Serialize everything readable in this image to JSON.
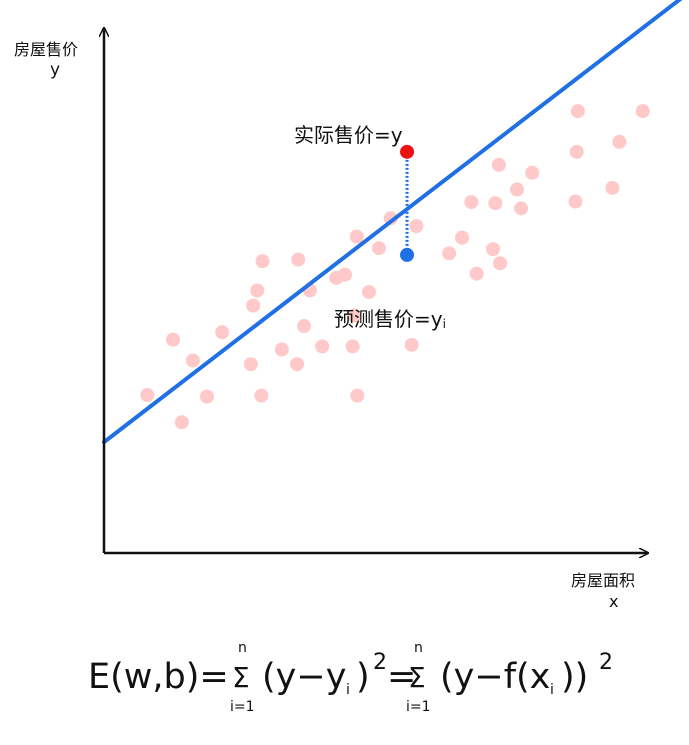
{
  "y_axis": {
    "title": "房屋售价",
    "var": "y"
  },
  "x_axis": {
    "title": "房屋面积",
    "var": "x"
  },
  "annotations": {
    "actual": "实际售价=y",
    "predicted": "预测售价=y",
    "predicted_sub": "i"
  },
  "formula": {
    "lhs": "E(w,b)=",
    "sum_top": "n",
    "sum_symbol": "Σ",
    "sum_bottom": "i=1",
    "term1_open": "(y−y",
    "sub_i": "i",
    "term1_close": ")",
    "squared": "2",
    "equals": "=",
    "term2_open": "(y−f(x",
    "term2_close": "))"
  },
  "colors": {
    "scatter": "#ffc9c9",
    "fit_line": "#1f6fe5",
    "actual_point": "#ee1111",
    "predicted_point": "#1f6fe5",
    "residual": "#1f6fe5",
    "axis": "#111111"
  },
  "chart_data": {
    "type": "scatter",
    "title": "",
    "xlabel": "房屋面积 x",
    "ylabel": "房屋售价 y",
    "axis_ticks": false,
    "grid": false,
    "xlim": [
      0,
      100
    ],
    "ylim": [
      0,
      100
    ],
    "fit_line": {
      "intercept": 21.2,
      "slope": 0.86
    },
    "points": [
      [
        7.4,
        30.2
      ],
      [
        11.8,
        40.8
      ],
      [
        13.3,
        25.0
      ],
      [
        15.2,
        36.8
      ],
      [
        17.6,
        29.9
      ],
      [
        20.2,
        42.2
      ],
      [
        25.1,
        36.1
      ],
      [
        25.5,
        47.3
      ],
      [
        26.2,
        50.2
      ],
      [
        26.9,
        30.1
      ],
      [
        27.1,
        55.8
      ],
      [
        30.4,
        38.9
      ],
      [
        33.0,
        36.1
      ],
      [
        33.2,
        56.1
      ],
      [
        34.2,
        43.4
      ],
      [
        35.2,
        50.2
      ],
      [
        37.3,
        39.5
      ],
      [
        39.7,
        52.6
      ],
      [
        41.2,
        53.2
      ],
      [
        42.5,
        39.5
      ],
      [
        42.8,
        45.4
      ],
      [
        43.2,
        60.5
      ],
      [
        43.3,
        30.1
      ],
      [
        45.3,
        49.9
      ],
      [
        47.0,
        58.3
      ],
      [
        49.0,
        64.0
      ],
      [
        52.6,
        39.8
      ],
      [
        53.4,
        62.5
      ],
      [
        59.0,
        57.3
      ],
      [
        61.2,
        60.3
      ],
      [
        62.8,
        67.1
      ],
      [
        63.7,
        53.4
      ],
      [
        66.5,
        58.1
      ],
      [
        66.9,
        66.9
      ],
      [
        67.5,
        74.2
      ],
      [
        67.7,
        55.4
      ],
      [
        70.6,
        69.5
      ],
      [
        71.3,
        65.9
      ],
      [
        73.2,
        72.7
      ],
      [
        80.6,
        67.2
      ],
      [
        80.8,
        76.7
      ],
      [
        81.0,
        84.5
      ],
      [
        86.9,
        69.8
      ],
      [
        88.1,
        78.6
      ],
      [
        92.1,
        84.5
      ]
    ],
    "highlight": {
      "x": 51.8,
      "y_actual": 76.7,
      "y_predicted": 57.0
    }
  }
}
